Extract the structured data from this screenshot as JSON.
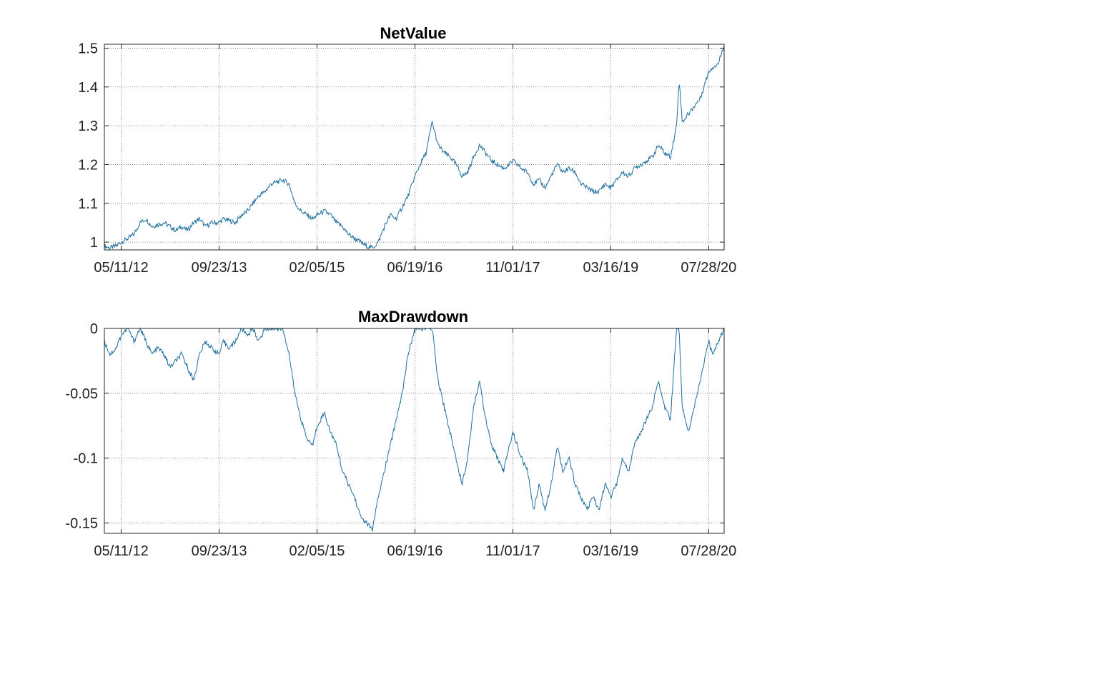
{
  "colors": {
    "line": "#1f6e9f",
    "grid": "#6b6b6b",
    "axis": "#262626",
    "background": "#ffffff"
  },
  "chart_data": [
    {
      "type": "line",
      "title": "NetValue",
      "xlabel": "",
      "ylabel": "",
      "grid": true,
      "xlim": [
        "2012-02-15",
        "2020-10-15"
      ],
      "ylim": [
        0.98,
        1.51
      ],
      "x_ticks": [
        "05/11/12",
        "09/23/13",
        "02/05/15",
        "06/19/16",
        "11/01/17",
        "03/16/19",
        "07/28/20"
      ],
      "y_ticks": [
        "1",
        "1.1",
        "1.2",
        "1.3",
        "1.4",
        "1.5"
      ],
      "series": [
        {
          "x": [
            "2012-02-15",
            "2012-03-15",
            "2012-04-15",
            "2012-05-11",
            "2012-06-15",
            "2012-07-15",
            "2012-08-15",
            "2012-09-15",
            "2012-10-15",
            "2012-11-15",
            "2012-12-15",
            "2013-01-15",
            "2013-02-15",
            "2013-03-15",
            "2013-04-15",
            "2013-05-15",
            "2013-06-15",
            "2013-07-15",
            "2013-08-15",
            "2013-09-23",
            "2013-10-15",
            "2013-11-15",
            "2013-12-15",
            "2014-01-15",
            "2014-02-15",
            "2014-03-15",
            "2014-04-15",
            "2014-05-15",
            "2014-06-15",
            "2014-07-15",
            "2014-08-15",
            "2014-09-15",
            "2014-10-15",
            "2014-11-15",
            "2014-12-15",
            "2015-01-15",
            "2015-02-05",
            "2015-03-15",
            "2015-04-15",
            "2015-05-15",
            "2015-06-15",
            "2015-07-15",
            "2015-08-15",
            "2015-09-15",
            "2015-10-15",
            "2015-11-15",
            "2015-12-15",
            "2016-01-15",
            "2016-02-15",
            "2016-03-15",
            "2016-04-15",
            "2016-05-15",
            "2016-06-19",
            "2016-07-15",
            "2016-08-15",
            "2016-09-15",
            "2016-10-15",
            "2016-11-15",
            "2016-12-15",
            "2017-01-15",
            "2017-02-15",
            "2017-03-15",
            "2017-04-15",
            "2017-05-15",
            "2017-06-15",
            "2017-07-15",
            "2017-08-15",
            "2017-09-15",
            "2017-10-15",
            "2017-11-01",
            "2017-12-15",
            "2018-01-15",
            "2018-02-15",
            "2018-03-15",
            "2018-04-15",
            "2018-05-15",
            "2018-06-15",
            "2018-07-15",
            "2018-08-15",
            "2018-09-15",
            "2018-10-15",
            "2018-11-15",
            "2018-12-15",
            "2019-01-15",
            "2019-02-15",
            "2019-03-16",
            "2019-04-15",
            "2019-05-15",
            "2019-06-15",
            "2019-07-15",
            "2019-08-15",
            "2019-09-15",
            "2019-10-15",
            "2019-11-15",
            "2019-12-15",
            "2020-01-15",
            "2020-02-15",
            "2020-02-28",
            "2020-03-15",
            "2020-04-15",
            "2020-05-15",
            "2020-06-15",
            "2020-07-28",
            "2020-08-15",
            "2020-09-15",
            "2020-10-15"
          ],
          "values": [
            0.99,
            0.985,
            0.99,
            1.0,
            1.01,
            1.02,
            1.05,
            1.06,
            1.04,
            1.045,
            1.05,
            1.04,
            1.03,
            1.04,
            1.03,
            1.05,
            1.06,
            1.04,
            1.05,
            1.05,
            1.06,
            1.055,
            1.05,
            1.07,
            1.08,
            1.1,
            1.12,
            1.13,
            1.15,
            1.155,
            1.16,
            1.15,
            1.1,
            1.08,
            1.07,
            1.06,
            1.07,
            1.08,
            1.07,
            1.05,
            1.04,
            1.02,
            1.01,
            1.0,
            0.99,
            0.985,
            1.0,
            1.04,
            1.07,
            1.06,
            1.09,
            1.12,
            1.17,
            1.2,
            1.23,
            1.31,
            1.25,
            1.23,
            1.22,
            1.2,
            1.17,
            1.18,
            1.22,
            1.25,
            1.23,
            1.21,
            1.2,
            1.19,
            1.2,
            1.21,
            1.19,
            1.18,
            1.15,
            1.16,
            1.14,
            1.17,
            1.2,
            1.18,
            1.19,
            1.18,
            1.15,
            1.14,
            1.13,
            1.13,
            1.15,
            1.14,
            1.16,
            1.18,
            1.17,
            1.19,
            1.2,
            1.21,
            1.22,
            1.25,
            1.23,
            1.22,
            1.3,
            1.42,
            1.31,
            1.33,
            1.35,
            1.37,
            1.44,
            1.45,
            1.46,
            1.51
          ]
        }
      ]
    },
    {
      "type": "line",
      "title": "MaxDrawdown",
      "xlabel": "",
      "ylabel": "",
      "grid": true,
      "xlim": [
        "2012-02-15",
        "2020-10-15"
      ],
      "ylim": [
        -0.158,
        0
      ],
      "x_ticks": [
        "05/11/12",
        "09/23/13",
        "02/05/15",
        "06/19/16",
        "11/01/17",
        "03/16/19",
        "07/28/20"
      ],
      "y_ticks": [
        "0",
        "-0.05",
        "-0.1",
        "-0.15"
      ],
      "series": [
        {
          "x": [
            "2012-02-15",
            "2012-03-15",
            "2012-04-15",
            "2012-05-11",
            "2012-06-15",
            "2012-07-15",
            "2012-08-15",
            "2012-09-15",
            "2012-10-15",
            "2012-11-15",
            "2012-12-15",
            "2013-01-15",
            "2013-02-15",
            "2013-03-15",
            "2013-04-15",
            "2013-05-15",
            "2013-06-15",
            "2013-07-15",
            "2013-08-15",
            "2013-09-23",
            "2013-10-15",
            "2013-11-15",
            "2013-12-15",
            "2014-01-15",
            "2014-02-15",
            "2014-03-15",
            "2014-04-15",
            "2014-05-15",
            "2014-06-15",
            "2014-07-15",
            "2014-08-15",
            "2014-09-15",
            "2014-10-15",
            "2014-11-15",
            "2014-12-15",
            "2015-01-15",
            "2015-02-05",
            "2015-03-15",
            "2015-04-15",
            "2015-05-15",
            "2015-06-15",
            "2015-07-15",
            "2015-08-15",
            "2015-09-15",
            "2015-10-15",
            "2015-11-15",
            "2015-12-15",
            "2016-01-15",
            "2016-02-15",
            "2016-03-15",
            "2016-04-15",
            "2016-05-15",
            "2016-06-19",
            "2016-07-15",
            "2016-08-15",
            "2016-09-15",
            "2016-10-15",
            "2016-11-15",
            "2016-12-15",
            "2017-01-15",
            "2017-02-15",
            "2017-03-15",
            "2017-04-15",
            "2017-05-15",
            "2017-06-15",
            "2017-07-15",
            "2017-08-15",
            "2017-09-15",
            "2017-10-15",
            "2017-11-01",
            "2017-12-15",
            "2018-01-15",
            "2018-02-15",
            "2018-03-15",
            "2018-04-15",
            "2018-05-15",
            "2018-06-15",
            "2018-07-15",
            "2018-08-15",
            "2018-09-15",
            "2018-10-15",
            "2018-11-15",
            "2018-12-15",
            "2019-01-15",
            "2019-02-15",
            "2019-03-16",
            "2019-04-15",
            "2019-05-15",
            "2019-06-15",
            "2019-07-15",
            "2019-08-15",
            "2019-09-15",
            "2019-10-15",
            "2019-11-15",
            "2019-12-15",
            "2020-01-15",
            "2020-02-15",
            "2020-02-28",
            "2020-03-15",
            "2020-04-15",
            "2020-05-15",
            "2020-06-15",
            "2020-07-28",
            "2020-08-15",
            "2020-09-15",
            "2020-10-15"
          ],
          "values": [
            -0.01,
            -0.02,
            -0.015,
            -0.005,
            0,
            -0.01,
            0,
            -0.01,
            -0.02,
            -0.015,
            -0.02,
            -0.03,
            -0.025,
            -0.02,
            -0.03,
            -0.04,
            -0.02,
            -0.01,
            -0.015,
            -0.02,
            -0.01,
            -0.015,
            -0.01,
            0,
            -0.005,
            0,
            -0.01,
            0,
            0,
            0,
            0,
            -0.02,
            -0.05,
            -0.07,
            -0.085,
            -0.09,
            -0.075,
            -0.065,
            -0.08,
            -0.09,
            -0.11,
            -0.12,
            -0.13,
            -0.145,
            -0.15,
            -0.155,
            -0.13,
            -0.11,
            -0.09,
            -0.07,
            -0.05,
            -0.02,
            0,
            0,
            0,
            0,
            -0.04,
            -0.06,
            -0.08,
            -0.1,
            -0.12,
            -0.1,
            -0.06,
            -0.04,
            -0.07,
            -0.09,
            -0.1,
            -0.11,
            -0.09,
            -0.08,
            -0.1,
            -0.11,
            -0.14,
            -0.12,
            -0.14,
            -0.12,
            -0.09,
            -0.11,
            -0.1,
            -0.12,
            -0.13,
            -0.14,
            -0.13,
            -0.14,
            -0.12,
            -0.13,
            -0.12,
            -0.1,
            -0.11,
            -0.09,
            -0.08,
            -0.07,
            -0.06,
            -0.04,
            -0.06,
            -0.07,
            0,
            0,
            -0.06,
            -0.08,
            -0.06,
            -0.04,
            -0.01,
            -0.02,
            -0.01,
            0
          ]
        }
      ]
    }
  ]
}
